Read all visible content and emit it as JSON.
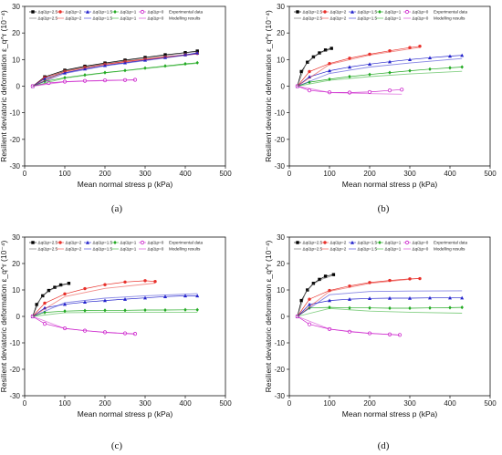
{
  "chart_data": [
    {
      "type": "line",
      "caption": "(a)",
      "xlabel": "Mean normal stress p (kPa)",
      "ylabel": "Resilient deviatoric deformation ε_q^r (10⁻⁴)",
      "xlim": [
        0,
        500
      ],
      "ylim": [
        -30,
        30
      ],
      "xticks": [
        0,
        100,
        200,
        300,
        400,
        500
      ],
      "yticks": [
        -30,
        -20,
        -10,
        0,
        10,
        20,
        30
      ],
      "legend_placement": "top",
      "series": [
        {
          "name": "Δq/Δp=2.5",
          "kind": "experimental",
          "color": "#000000",
          "marker": "square",
          "x": [
            20,
            50,
            100,
            150,
            200,
            250,
            300,
            350,
            400,
            430
          ],
          "y": [
            0,
            3.5,
            6,
            7.5,
            8.7,
            9.8,
            10.8,
            11.8,
            12.6,
            13.2
          ]
        },
        {
          "name": "Δq/Δp=2",
          "kind": "experimental",
          "color": "#e8302a",
          "marker": "circle",
          "x": [
            20,
            50,
            100,
            150,
            200,
            250,
            300,
            350,
            400,
            430
          ],
          "y": [
            0,
            3.2,
            5.6,
            7.1,
            8.3,
            9.3,
            10.2,
            11,
            11.8,
            12.3
          ]
        },
        {
          "name": "Δq/Δp=1.5",
          "kind": "experimental",
          "color": "#2222cc",
          "marker": "triangle",
          "x": [
            20,
            50,
            100,
            150,
            200,
            250,
            300,
            350,
            400,
            430
          ],
          "y": [
            0,
            2.8,
            5,
            6.5,
            7.8,
            8.8,
            9.8,
            10.8,
            11.8,
            12.5
          ]
        },
        {
          "name": "Δq/Δp=1",
          "kind": "experimental",
          "color": "#22aa22",
          "marker": "diamond",
          "x": [
            20,
            50,
            100,
            150,
            200,
            250,
            300,
            350,
            400,
            430
          ],
          "y": [
            0,
            1.8,
            3.2,
            4.2,
            5.1,
            5.9,
            6.8,
            7.6,
            8.4,
            8.8
          ]
        },
        {
          "name": "Δq/Δp=0",
          "kind": "experimental",
          "color": "#cc22cc",
          "marker": "circle-open",
          "x": [
            20,
            60,
            100,
            150,
            200,
            250,
            275
          ],
          "y": [
            0,
            1.2,
            1.7,
            2,
            2.2,
            2.3,
            2.4
          ]
        },
        {
          "name": "Δq/Δp=2.5",
          "kind": "modelling",
          "color": "#555555",
          "x": [
            20,
            100,
            200,
            300,
            430
          ],
          "y": [
            0,
            5.8,
            8.5,
            10.6,
            13
          ]
        },
        {
          "name": "Δq/Δp=2",
          "kind": "modelling",
          "color": "#e8302a",
          "x": [
            20,
            100,
            200,
            300,
            430
          ],
          "y": [
            0,
            5.4,
            8.1,
            10,
            12.1
          ]
        },
        {
          "name": "Δq/Δp=1.5",
          "kind": "modelling",
          "color": "#2222cc",
          "x": [
            20,
            100,
            200,
            300,
            430
          ],
          "y": [
            0,
            4.8,
            7.6,
            9.6,
            12.2
          ]
        },
        {
          "name": "Δq/Δp=1",
          "kind": "modelling",
          "color": "#22aa22",
          "x": [
            20,
            100,
            200,
            300,
            430
          ],
          "y": [
            0,
            3,
            5,
            6.6,
            8.6
          ]
        },
        {
          "name": "Δq/Δp=0",
          "kind": "modelling",
          "color": "#cc22cc",
          "x": [
            20,
            100,
            200,
            275
          ],
          "y": [
            0,
            1.6,
            2.1,
            2.3
          ]
        }
      ]
    },
    {
      "type": "line",
      "caption": "(b)",
      "xlabel": "Mean normal stress p (kPa)",
      "ylabel": "Resilient deviatoric deformation ε_q^r (10⁻⁴)",
      "xlim": [
        0,
        500
      ],
      "ylim": [
        -30,
        30
      ],
      "xticks": [
        0,
        100,
        200,
        300,
        400,
        500
      ],
      "yticks": [
        -30,
        -20,
        -10,
        0,
        10,
        20,
        30
      ],
      "legend_placement": "top",
      "series": [
        {
          "name": "Δq/Δp=2.5",
          "kind": "experimental",
          "color": "#000000",
          "marker": "square",
          "x": [
            20,
            30,
            45,
            60,
            75,
            90,
            105
          ],
          "y": [
            0,
            5.5,
            9,
            11,
            12.5,
            13.6,
            14.2
          ]
        },
        {
          "name": "Δq/Δp=2",
          "kind": "experimental",
          "color": "#e8302a",
          "marker": "circle",
          "x": [
            20,
            50,
            100,
            150,
            200,
            250,
            300,
            325
          ],
          "y": [
            0,
            5.5,
            8.5,
            10.5,
            12,
            13.3,
            14.5,
            15
          ]
        },
        {
          "name": "Δq/Δp=1.5",
          "kind": "experimental",
          "color": "#2222cc",
          "marker": "triangle",
          "x": [
            20,
            50,
            100,
            150,
            200,
            250,
            300,
            350,
            400,
            430
          ],
          "y": [
            0,
            3.5,
            5.8,
            7.2,
            8.3,
            9.2,
            10,
            10.7,
            11.3,
            11.6
          ]
        },
        {
          "name": "Δq/Δp=1",
          "kind": "experimental",
          "color": "#22aa22",
          "marker": "diamond",
          "x": [
            20,
            50,
            100,
            150,
            200,
            250,
            300,
            350,
            400,
            430
          ],
          "y": [
            0,
            1.5,
            2.6,
            3.6,
            4.4,
            5.1,
            5.8,
            6.4,
            6.9,
            7.2
          ]
        },
        {
          "name": "Δq/Δp=0",
          "kind": "experimental",
          "color": "#cc22cc",
          "marker": "circle-open",
          "x": [
            20,
            50,
            100,
            150,
            200,
            250,
            280
          ],
          "y": [
            0,
            -1.6,
            -2.3,
            -2.4,
            -2.2,
            -1.6,
            -1.3
          ]
        },
        {
          "name": "Δq/Δp=2.5",
          "kind": "modelling",
          "color": "#555555",
          "x": [
            20,
            40,
            60,
            80,
            105
          ],
          "y": [
            0,
            8,
            10.8,
            12.7,
            14
          ]
        },
        {
          "name": "Δq/Δp=2",
          "kind": "modelling",
          "color": "#e8302a",
          "x": [
            20,
            100,
            200,
            325
          ],
          "y": [
            0,
            8.2,
            11.7,
            14.6
          ]
        },
        {
          "name": "Δq/Δp=1.5",
          "kind": "modelling",
          "color": "#2222cc",
          "x": [
            20,
            100,
            200,
            300,
            430
          ],
          "y": [
            0,
            4.8,
            7.2,
            8.7,
            10.4
          ]
        },
        {
          "name": "Δq/Δp=1",
          "kind": "modelling",
          "color": "#22aa22",
          "x": [
            20,
            100,
            200,
            300,
            430
          ],
          "y": [
            0,
            2.2,
            3.6,
            4.6,
            5.6
          ]
        },
        {
          "name": "Δq/Δp=0",
          "kind": "modelling",
          "color": "#cc22cc",
          "x": [
            20,
            100,
            200,
            280
          ],
          "y": [
            0,
            -2.4,
            -2.8,
            -3
          ]
        }
      ]
    },
    {
      "type": "line",
      "caption": "(c)",
      "xlabel": "Mean normal stress p (kPa)",
      "ylabel": "Resilient deviatoric deformation ε_q^r (10⁻⁴)",
      "xlim": [
        0,
        500
      ],
      "ylim": [
        -30,
        30
      ],
      "xticks": [
        0,
        100,
        200,
        300,
        400,
        500
      ],
      "yticks": [
        -30,
        -20,
        -10,
        0,
        10,
        20,
        30
      ],
      "legend_placement": "top",
      "series": [
        {
          "name": "Δq/Δp=2.5",
          "kind": "experimental",
          "color": "#000000",
          "marker": "square",
          "x": [
            20,
            30,
            45,
            60,
            75,
            90,
            110
          ],
          "y": [
            0,
            4.5,
            7.8,
            9.8,
            11,
            11.9,
            12.5
          ]
        },
        {
          "name": "Δq/Δp=2",
          "kind": "experimental",
          "color": "#e8302a",
          "marker": "circle",
          "x": [
            20,
            50,
            100,
            150,
            200,
            250,
            300,
            325
          ],
          "y": [
            0,
            5,
            8.5,
            10.5,
            12,
            13,
            13.5,
            13.2
          ]
        },
        {
          "name": "Δq/Δp=1.5",
          "kind": "experimental",
          "color": "#2222cc",
          "marker": "triangle",
          "x": [
            20,
            50,
            100,
            150,
            200,
            250,
            300,
            350,
            400,
            430
          ],
          "y": [
            0,
            3.2,
            4.6,
            5.4,
            6,
            6.5,
            7,
            7.5,
            7.8,
            7.8
          ]
        },
        {
          "name": "Δq/Δp=1",
          "kind": "experimental",
          "color": "#22aa22",
          "marker": "diamond",
          "x": [
            20,
            50,
            100,
            150,
            200,
            250,
            300,
            350,
            400,
            430
          ],
          "y": [
            0,
            1.5,
            2,
            2.2,
            2.3,
            2.3,
            2.4,
            2.4,
            2.5,
            2.5
          ]
        },
        {
          "name": "Δq/Δp=0",
          "kind": "experimental",
          "color": "#cc22cc",
          "marker": "circle-open",
          "x": [
            20,
            50,
            100,
            150,
            200,
            250,
            275
          ],
          "y": [
            0,
            -2.8,
            -4.5,
            -5.4,
            -6,
            -6.4,
            -6.6
          ]
        },
        {
          "name": "Δq/Δp=2.5",
          "kind": "modelling",
          "color": "#555555",
          "x": [
            20,
            40,
            60,
            80,
            110
          ],
          "y": [
            0,
            7,
            9.6,
            11.1,
            12.4
          ]
        },
        {
          "name": "Δq/Δp=2",
          "kind": "modelling",
          "color": "#e8302a",
          "x": [
            20,
            100,
            200,
            325
          ],
          "y": [
            0,
            7.5,
            10.6,
            12.6
          ]
        },
        {
          "name": "Δq/Δp=1.5",
          "kind": "modelling",
          "color": "#2222cc",
          "x": [
            20,
            100,
            200,
            300,
            430
          ],
          "y": [
            0,
            5.2,
            6.9,
            7.8,
            8.6
          ]
        },
        {
          "name": "Δq/Δp=1",
          "kind": "modelling",
          "color": "#22aa22",
          "x": [
            20,
            100,
            200,
            300,
            430
          ],
          "y": [
            0,
            1.4,
            1.5,
            1.5,
            1.5
          ]
        },
        {
          "name": "Δq/Δp=0",
          "kind": "modelling",
          "color": "#cc22cc",
          "x": [
            20,
            100,
            200,
            275
          ],
          "y": [
            0,
            -4.6,
            -6.1,
            -6.7
          ]
        }
      ]
    },
    {
      "type": "line",
      "caption": "(d)",
      "xlabel": "Mean normal stress p (kPa)",
      "ylabel": "Resilient deviatoric deformation ε_q^r (10⁻⁴)",
      "xlim": [
        0,
        500
      ],
      "ylim": [
        -30,
        30
      ],
      "xticks": [
        0,
        100,
        200,
        300,
        400,
        500
      ],
      "yticks": [
        -30,
        -20,
        -10,
        0,
        10,
        20,
        30
      ],
      "legend_placement": "top",
      "series": [
        {
          "name": "Δq/Δp=2.5",
          "kind": "experimental",
          "color": "#000000",
          "marker": "square",
          "x": [
            20,
            30,
            45,
            60,
            75,
            90,
            110
          ],
          "y": [
            0,
            6,
            10,
            12.5,
            14,
            15.2,
            15.8
          ]
        },
        {
          "name": "Δq/Δp=2",
          "kind": "experimental",
          "color": "#e8302a",
          "marker": "circle",
          "x": [
            20,
            50,
            100,
            150,
            200,
            250,
            300,
            325
          ],
          "y": [
            0,
            6.5,
            9.8,
            11.5,
            12.8,
            13.6,
            14.2,
            14.3
          ]
        },
        {
          "name": "Δq/Δp=1.5",
          "kind": "experimental",
          "color": "#2222cc",
          "marker": "triangle",
          "x": [
            20,
            50,
            100,
            150,
            200,
            250,
            300,
            350,
            400,
            430
          ],
          "y": [
            0,
            4.5,
            6,
            6.5,
            6.8,
            6.9,
            6.9,
            7,
            7,
            7
          ]
        },
        {
          "name": "Δq/Δp=1",
          "kind": "experimental",
          "color": "#22aa22",
          "marker": "diamond",
          "x": [
            20,
            50,
            100,
            150,
            200,
            250,
            300,
            350,
            400,
            430
          ],
          "y": [
            0,
            3.2,
            3.4,
            3.2,
            3.2,
            3.1,
            3.1,
            3.2,
            3.3,
            3.4
          ]
        },
        {
          "name": "Δq/Δp=0",
          "kind": "experimental",
          "color": "#cc22cc",
          "marker": "circle-open",
          "x": [
            20,
            50,
            100,
            150,
            200,
            250,
            275
          ],
          "y": [
            0,
            -3,
            -4.8,
            -5.8,
            -6.4,
            -6.8,
            -7
          ]
        },
        {
          "name": "Δq/Δp=2.5",
          "kind": "modelling",
          "color": "#555555",
          "x": [
            20,
            40,
            60,
            80,
            110
          ],
          "y": [
            0,
            9,
            12.3,
            14,
            15.6
          ]
        },
        {
          "name": "Δq/Δp=2",
          "kind": "modelling",
          "color": "#e8302a",
          "x": [
            20,
            100,
            200,
            325
          ],
          "y": [
            0,
            9.5,
            12.5,
            14.4
          ]
        },
        {
          "name": "Δq/Δp=1.5",
          "kind": "modelling",
          "color": "#2222cc",
          "x": [
            20,
            100,
            200,
            300,
            430
          ],
          "y": [
            0,
            8.2,
            9.4,
            9.6,
            9.7
          ]
        },
        {
          "name": "Δq/Δp=1",
          "kind": "modelling",
          "color": "#22aa22",
          "x": [
            20,
            100,
            200,
            300,
            430
          ],
          "y": [
            0,
            3,
            2,
            1.6,
            1.2
          ]
        },
        {
          "name": "Δq/Δp=0",
          "kind": "modelling",
          "color": "#cc22cc",
          "x": [
            20,
            100,
            200,
            275
          ],
          "y": [
            0,
            -4.8,
            -6.4,
            -7.1
          ]
        }
      ]
    }
  ],
  "legend_labels": {
    "experimental": "Experimental data",
    "modelling": "Modelling results"
  }
}
